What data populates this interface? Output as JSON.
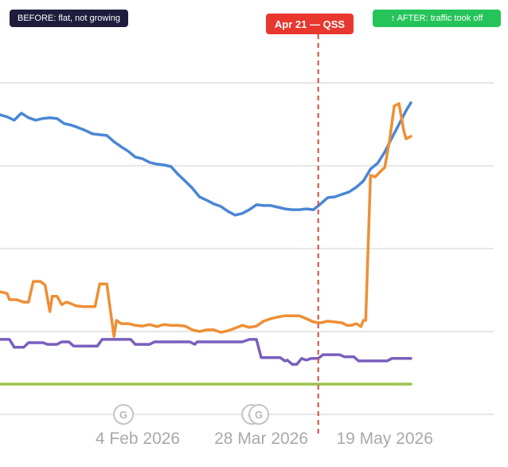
{
  "colors": {
    "grid": "#e6e6e6",
    "event_line": "#d94a3d",
    "badge_before": "#1f1d3d",
    "badge_after": "#25c45a",
    "badge_event": "#e8372e"
  },
  "annotations": {
    "before": "BEFORE: flat, not growing",
    "after": "↑ AFTER: traffic took off",
    "event": "Apr 21 — QSS"
  },
  "markers": {
    "icon": "google-update-icon",
    "label": "G",
    "dates": [
      "2026-01-29",
      "2026-03-24",
      "2026-03-27"
    ]
  },
  "chart_data": {
    "type": "line",
    "title": "",
    "xlabel": "",
    "ylabel": "",
    "x_axis": {
      "type": "date",
      "start": "2025-12-08",
      "end": "2026-05-30",
      "ticks": [
        {
          "date": "2026-02-04",
          "label": "4 Feb 2026"
        },
        {
          "date": "2026-03-28",
          "label": "28 Mar 2026"
        },
        {
          "date": "2026-05-19",
          "label": "19 May 2026"
        }
      ]
    },
    "y_axis": {
      "range": [
        0,
        100
      ],
      "tick_labels_visible": false,
      "gridlines": [
        0,
        20,
        40,
        60,
        80
      ]
    },
    "grid": true,
    "legend": "none",
    "event": {
      "date": "2026-04-21",
      "label": "Apr 21 — QSS"
    },
    "series": [
      {
        "color": "#4a86d4",
        "points": [
          [
            "2025-12-08",
            72.3
          ],
          [
            "2025-12-11",
            71.8
          ],
          [
            "2025-12-14",
            71.0
          ],
          [
            "2025-12-17",
            72.7
          ],
          [
            "2025-12-20",
            71.6
          ],
          [
            "2025-12-23",
            71.0
          ],
          [
            "2025-12-26",
            71.4
          ],
          [
            "2025-12-29",
            71.6
          ],
          [
            "2026-01-01",
            71.4
          ],
          [
            "2026-01-04",
            70.2
          ],
          [
            "2026-01-07",
            69.8
          ],
          [
            "2026-01-10",
            69.2
          ],
          [
            "2026-01-13",
            68.5
          ],
          [
            "2026-01-16",
            67.7
          ],
          [
            "2026-01-19",
            67.5
          ],
          [
            "2026-01-22",
            67.3
          ],
          [
            "2026-01-25",
            65.8
          ],
          [
            "2026-01-28",
            64.6
          ],
          [
            "2026-01-31",
            63.5
          ],
          [
            "2026-02-03",
            62.1
          ],
          [
            "2026-02-06",
            61.7
          ],
          [
            "2026-02-09",
            60.8
          ],
          [
            "2026-02-12",
            60.4
          ],
          [
            "2026-02-15",
            60.2
          ],
          [
            "2026-02-18",
            59.8
          ],
          [
            "2026-02-21",
            57.9
          ],
          [
            "2026-02-24",
            56.3
          ],
          [
            "2026-02-27",
            54.6
          ],
          [
            "2026-03-02",
            52.5
          ],
          [
            "2026-03-05",
            51.7
          ],
          [
            "2026-03-08",
            50.8
          ],
          [
            "2026-03-11",
            50.2
          ],
          [
            "2026-03-14",
            49.0
          ],
          [
            "2026-03-17",
            48.1
          ],
          [
            "2026-03-20",
            48.5
          ],
          [
            "2026-03-23",
            49.4
          ],
          [
            "2026-03-26",
            50.6
          ],
          [
            "2026-03-29",
            50.4
          ],
          [
            "2026-04-01",
            50.4
          ],
          [
            "2026-04-04",
            50.0
          ],
          [
            "2026-04-07",
            49.6
          ],
          [
            "2026-04-10",
            49.4
          ],
          [
            "2026-04-13",
            49.4
          ],
          [
            "2026-04-16",
            49.6
          ],
          [
            "2026-04-19",
            49.4
          ],
          [
            "2026-04-22",
            50.8
          ],
          [
            "2026-04-25",
            52.3
          ],
          [
            "2026-04-28",
            52.5
          ],
          [
            "2026-05-01",
            53.1
          ],
          [
            "2026-05-04",
            53.7
          ],
          [
            "2026-05-07",
            54.8
          ],
          [
            "2026-05-10",
            56.3
          ],
          [
            "2026-05-13",
            59.2
          ],
          [
            "2026-05-16",
            60.6
          ],
          [
            "2026-05-19",
            63.3
          ],
          [
            "2026-05-22",
            66.7
          ],
          [
            "2026-05-25",
            70.0
          ],
          [
            "2026-05-28",
            73.3
          ],
          [
            "2026-05-30",
            75.2
          ]
        ]
      },
      {
        "color": "#ee8f35",
        "points": [
          [
            "2025-12-08",
            29.6
          ],
          [
            "2025-12-11",
            29.2
          ],
          [
            "2025-12-12",
            27.7
          ],
          [
            "2025-12-15",
            27.7
          ],
          [
            "2025-12-18",
            27.1
          ],
          [
            "2025-12-20",
            27.1
          ],
          [
            "2025-12-22",
            32.1
          ],
          [
            "2025-12-25",
            32.1
          ],
          [
            "2025-12-27",
            31.2
          ],
          [
            "2025-12-29",
            24.8
          ],
          [
            "2025-12-30",
            28.5
          ],
          [
            "2026-01-01",
            28.5
          ],
          [
            "2026-01-03",
            26.5
          ],
          [
            "2026-01-05",
            27.1
          ],
          [
            "2026-01-07",
            26.7
          ],
          [
            "2026-01-09",
            26.2
          ],
          [
            "2026-01-12",
            26.0
          ],
          [
            "2026-01-15",
            26.0
          ],
          [
            "2026-01-17",
            26.0
          ],
          [
            "2026-01-19",
            31.5
          ],
          [
            "2026-01-22",
            31.5
          ],
          [
            "2026-01-23",
            27.1
          ],
          [
            "2026-01-25",
            18.8
          ],
          [
            "2026-01-26",
            22.7
          ],
          [
            "2026-01-28",
            21.9
          ],
          [
            "2026-01-31",
            21.9
          ],
          [
            "2026-02-03",
            21.5
          ],
          [
            "2026-02-06",
            21.3
          ],
          [
            "2026-02-09",
            21.7
          ],
          [
            "2026-02-12",
            21.2
          ],
          [
            "2026-02-15",
            21.7
          ],
          [
            "2026-02-18",
            21.5
          ],
          [
            "2026-02-21",
            21.5
          ],
          [
            "2026-02-24",
            21.3
          ],
          [
            "2026-02-27",
            20.4
          ],
          [
            "2026-03-02",
            20.0
          ],
          [
            "2026-03-05",
            20.4
          ],
          [
            "2026-03-08",
            20.4
          ],
          [
            "2026-03-11",
            19.8
          ],
          [
            "2026-03-14",
            20.2
          ],
          [
            "2026-03-17",
            20.8
          ],
          [
            "2026-03-20",
            21.5
          ],
          [
            "2026-03-23",
            21.0
          ],
          [
            "2026-03-26",
            21.3
          ],
          [
            "2026-03-29",
            22.5
          ],
          [
            "2026-04-01",
            23.1
          ],
          [
            "2026-04-04",
            23.5
          ],
          [
            "2026-04-07",
            23.8
          ],
          [
            "2026-04-10",
            23.8
          ],
          [
            "2026-04-13",
            23.8
          ],
          [
            "2026-04-16",
            23.1
          ],
          [
            "2026-04-19",
            22.3
          ],
          [
            "2026-04-22",
            22.1
          ],
          [
            "2026-04-25",
            22.5
          ],
          [
            "2026-04-28",
            22.3
          ],
          [
            "2026-05-01",
            22.1
          ],
          [
            "2026-05-03",
            21.5
          ],
          [
            "2026-05-05",
            21.5
          ],
          [
            "2026-05-07",
            21.9
          ],
          [
            "2026-05-09",
            21.2
          ],
          [
            "2026-05-10",
            22.7
          ],
          [
            "2026-05-11",
            22.7
          ],
          [
            "2026-05-13",
            57.7
          ],
          [
            "2026-05-15",
            57.3
          ],
          [
            "2026-05-17",
            58.5
          ],
          [
            "2026-05-19",
            59.6
          ],
          [
            "2026-05-21",
            66.0
          ],
          [
            "2026-05-23",
            74.4
          ],
          [
            "2026-05-25",
            75.0
          ],
          [
            "2026-05-27",
            68.5
          ],
          [
            "2026-05-28",
            66.5
          ],
          [
            "2026-05-30",
            67.1
          ]
        ]
      },
      {
        "color": "#7a5fbd",
        "points": [
          [
            "2025-12-08",
            18.1
          ],
          [
            "2025-12-12",
            18.1
          ],
          [
            "2025-12-14",
            16.2
          ],
          [
            "2025-12-18",
            16.2
          ],
          [
            "2025-12-20",
            17.3
          ],
          [
            "2025-12-26",
            17.3
          ],
          [
            "2025-12-28",
            16.9
          ],
          [
            "2026-01-01",
            16.9
          ],
          [
            "2026-01-03",
            17.5
          ],
          [
            "2026-01-06",
            17.5
          ],
          [
            "2026-01-08",
            16.5
          ],
          [
            "2026-01-18",
            16.5
          ],
          [
            "2026-01-20",
            18.1
          ],
          [
            "2026-02-01",
            18.1
          ],
          [
            "2026-02-03",
            16.9
          ],
          [
            "2026-02-09",
            16.9
          ],
          [
            "2026-02-11",
            17.5
          ],
          [
            "2026-02-26",
            17.5
          ],
          [
            "2026-02-28",
            16.9
          ],
          [
            "2026-03-01",
            17.5
          ],
          [
            "2026-03-20",
            17.5
          ],
          [
            "2026-03-23",
            18.1
          ],
          [
            "2026-03-26",
            18.1
          ],
          [
            "2026-03-28",
            13.7
          ],
          [
            "2026-04-05",
            13.7
          ],
          [
            "2026-04-07",
            12.9
          ],
          [
            "2026-04-08",
            13.1
          ],
          [
            "2026-04-10",
            12.1
          ],
          [
            "2026-04-12",
            12.1
          ],
          [
            "2026-04-14",
            13.5
          ],
          [
            "2026-04-16",
            13.1
          ],
          [
            "2026-04-18",
            13.5
          ],
          [
            "2026-04-21",
            13.5
          ],
          [
            "2026-04-23",
            14.4
          ],
          [
            "2026-04-30",
            14.4
          ],
          [
            "2026-05-02",
            13.9
          ],
          [
            "2026-05-06",
            13.9
          ],
          [
            "2026-05-08",
            12.9
          ],
          [
            "2026-05-20",
            12.9
          ],
          [
            "2026-05-22",
            13.5
          ],
          [
            "2026-05-30",
            13.5
          ]
        ]
      },
      {
        "color": "#9bc24e",
        "points": [
          [
            "2025-12-08",
            7.3
          ],
          [
            "2026-05-30",
            7.3
          ]
        ]
      }
    ]
  }
}
